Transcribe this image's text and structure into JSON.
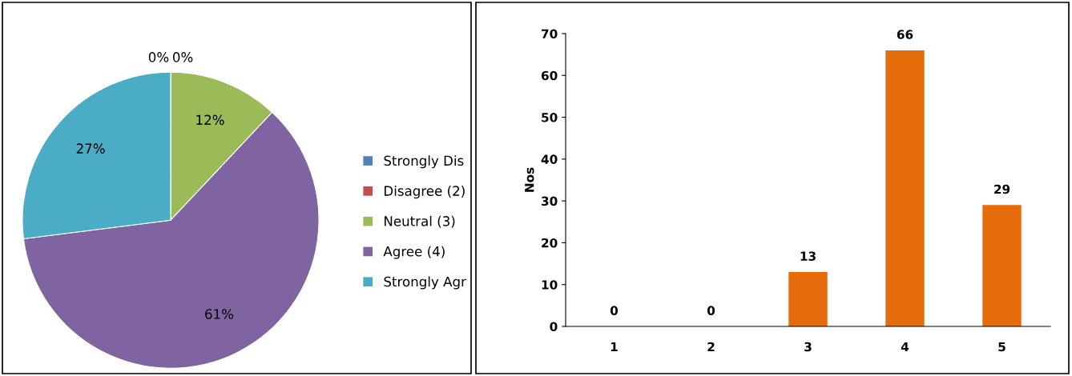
{
  "chart_data": [
    {
      "type": "pie",
      "categories": [
        "Strongly Dis",
        "Disagree (2)",
        "Neutral (3)",
        "Agree (4)",
        "Strongly Agr"
      ],
      "values": [
        0,
        0,
        12,
        61,
        27
      ],
      "colors": [
        "#4f81bd",
        "#c0504d",
        "#9bbb59",
        "#8064a2",
        "#4bacc6"
      ],
      "value_labels": [
        "0%",
        "0%",
        "12%",
        "61%",
        "27%"
      ],
      "legend": "right"
    },
    {
      "type": "bar",
      "categories": [
        "1",
        "2",
        "3",
        "4",
        "5"
      ],
      "values": [
        0,
        0,
        13,
        66,
        29
      ],
      "color": "#e46c0a",
      "ylabel": "Nos",
      "ylim": [
        0,
        70
      ],
      "yticks": [
        0,
        10,
        20,
        30,
        40,
        50,
        60,
        70
      ],
      "data_labels": true,
      "grid": false
    }
  ]
}
